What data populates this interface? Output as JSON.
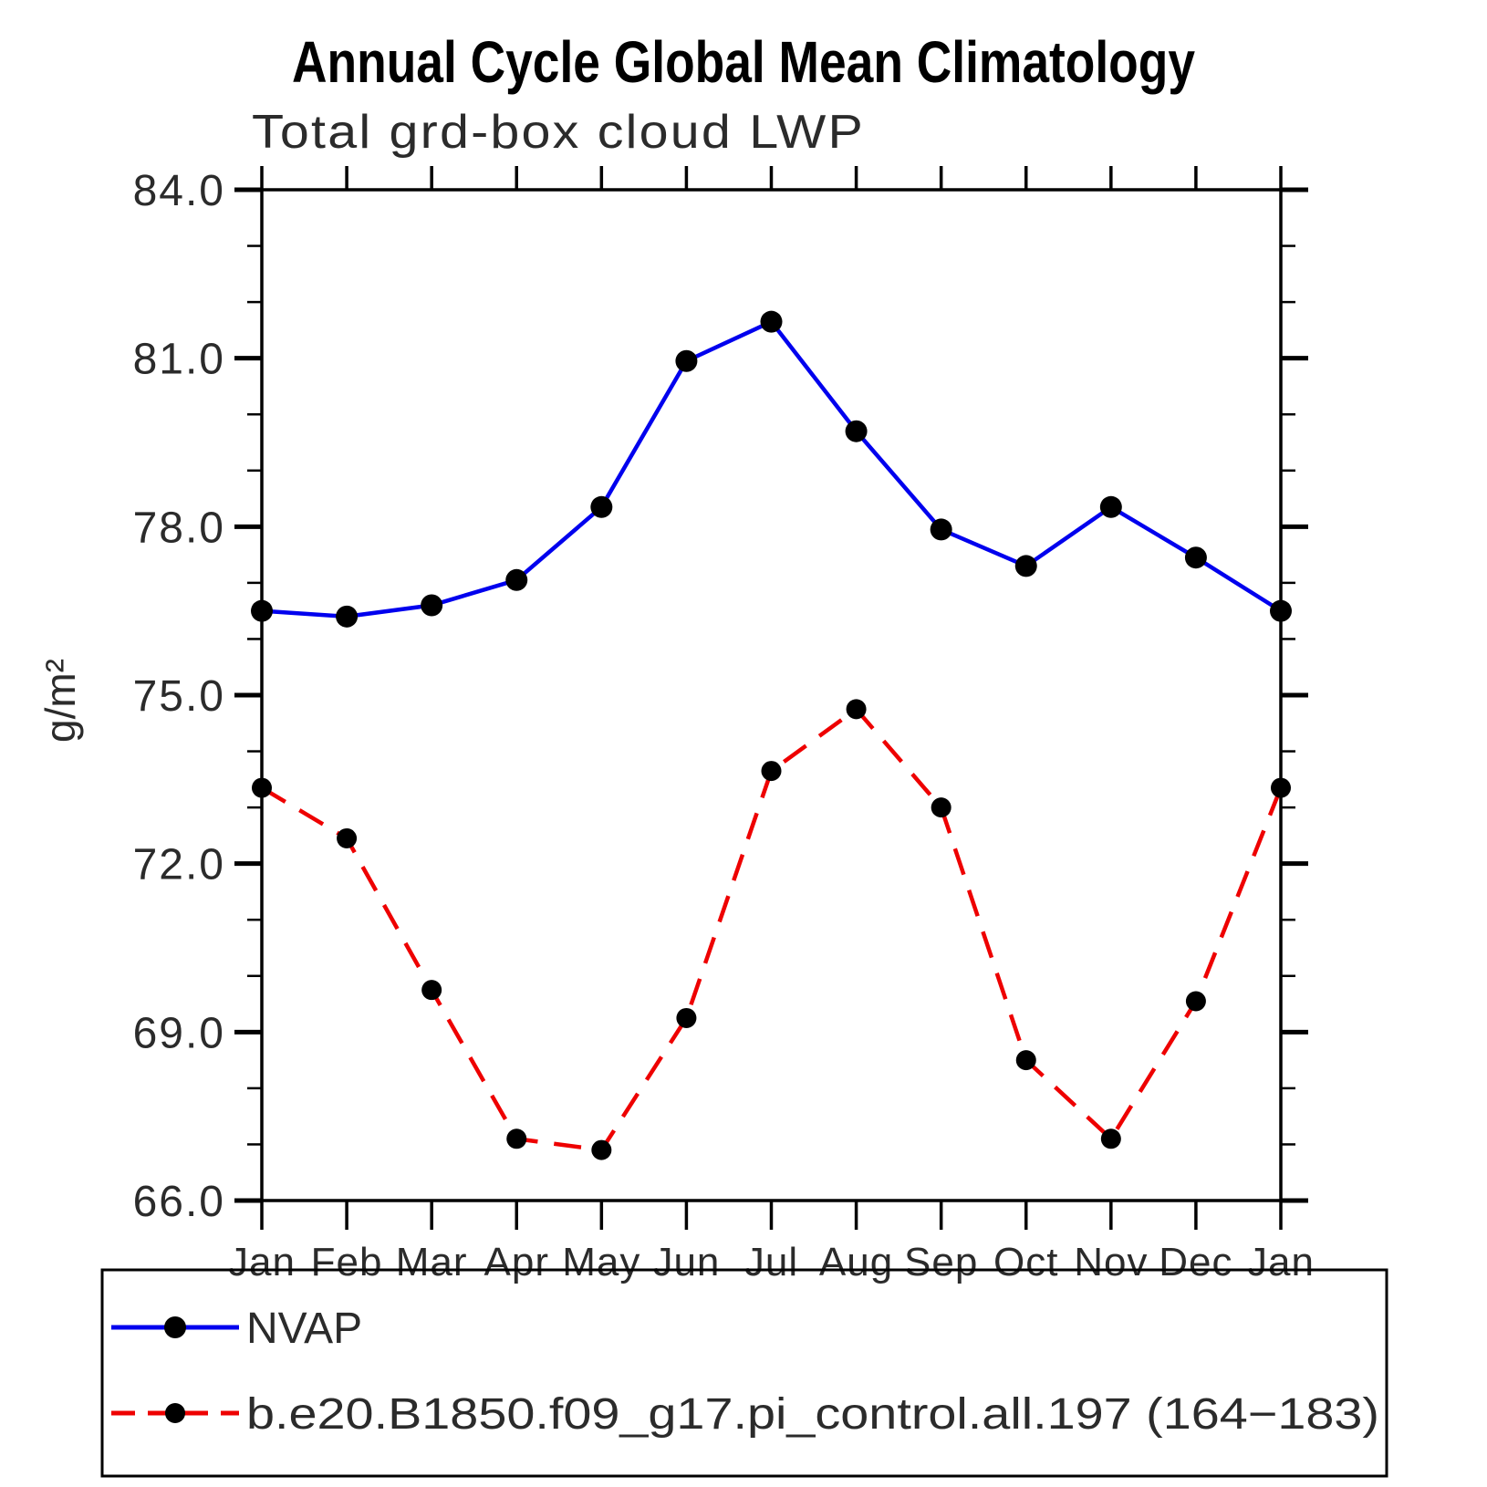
{
  "chart_data": {
    "type": "line",
    "title": "Annual Cycle Global Mean Climatology",
    "subtitle": "Total grd-box cloud LWP",
    "ylabel": "g/m²",
    "xlabel": "",
    "categories": [
      "Jan",
      "Feb",
      "Mar",
      "Apr",
      "May",
      "Jun",
      "Jul",
      "Aug",
      "Sep",
      "Oct",
      "Nov",
      "Dec",
      "Jan"
    ],
    "ylim": [
      66.0,
      84.0
    ],
    "y_major_ticks": [
      84.0,
      81.0,
      78.0,
      75.0,
      72.0,
      69.0,
      66.0
    ],
    "y_major_tick_labels": [
      "84.0",
      "81.0",
      "78.0",
      "75.0",
      "72.0",
      "69.0",
      "66.0"
    ],
    "y_minor_tick_interval": 1.0,
    "grid": false,
    "legend_position": "bottom",
    "series": [
      {
        "name": "NVAP",
        "color": "#0000ee",
        "line_style": "solid",
        "marker": "filled-circle",
        "marker_color": "#000000",
        "values": [
          76.5,
          76.4,
          76.6,
          77.05,
          78.35,
          80.95,
          81.65,
          79.7,
          77.95,
          77.3,
          78.35,
          77.45,
          76.5
        ]
      },
      {
        "name": "b.e20.B1850.f09_g17.pi_control.all.197 (164−183)",
        "color": "#ee0000",
        "line_style": "dashed",
        "marker": "filled-circle",
        "marker_color": "#000000",
        "values": [
          73.35,
          72.45,
          69.75,
          67.1,
          66.9,
          69.25,
          73.65,
          74.75,
          73.0,
          68.5,
          67.1,
          69.55,
          73.35
        ]
      }
    ]
  }
}
